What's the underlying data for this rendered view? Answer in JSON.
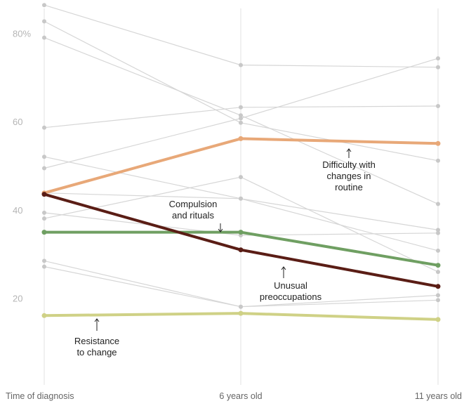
{
  "chart_data": {
    "type": "line",
    "x": [
      "Time of diagnosis",
      "6 years old",
      "11 years old"
    ],
    "y_ticks": [
      "80%",
      "60",
      "40",
      "20"
    ],
    "y_tick_values": [
      80,
      60,
      40,
      20
    ],
    "ylim": [
      0,
      87.5
    ],
    "grid": "vertical lines at each x category",
    "background_series": [
      {
        "values": [
          86.6,
          73.0,
          72.5
        ]
      },
      {
        "values": [
          82.9,
          59.9,
          51.3
        ]
      },
      {
        "values": [
          79.2,
          61.6,
          41.5
        ]
      },
      {
        "values": [
          58.8,
          63.4,
          63.7
        ]
      },
      {
        "values": [
          49.6,
          60.9,
          74.5
        ]
      },
      {
        "values": [
          52.2,
          42.7,
          35.6
        ]
      },
      {
        "values": [
          44.0,
          42.7,
          30.9
        ]
      },
      {
        "values": [
          39.5,
          34.4,
          34.9
        ]
      },
      {
        "values": [
          38.2,
          47.6,
          26.1
        ]
      },
      {
        "values": [
          28.6,
          18.2,
          19.7
        ]
      },
      {
        "values": [
          27.3,
          18.2,
          20.8
        ]
      }
    ],
    "series": [
      {
        "name": "Difficulty with changes in routine",
        "values": [
          44.0,
          56.3,
          55.2
        ],
        "color": "#e8a878"
      },
      {
        "name": "Compulsion and rituals",
        "values": [
          35.1,
          35.1,
          27.6
        ],
        "color": "#6f9f62"
      },
      {
        "name": "Unusual preoccupations",
        "values": [
          43.7,
          31.1,
          22.8
        ],
        "color": "#5a1d15"
      },
      {
        "name": "Resistance to change",
        "values": [
          16.2,
          16.7,
          15.3
        ],
        "color": "#cfd186"
      }
    ],
    "annotations": [
      {
        "series": 0,
        "lines": [
          "Difficulty with",
          "changes in",
          "routine"
        ],
        "arrow": "up"
      },
      {
        "series": 1,
        "lines": [
          "Compulsion",
          "and rituals"
        ],
        "arrow": "down"
      },
      {
        "series": 2,
        "lines": [
          "Unusual",
          "preoccupations"
        ],
        "arrow": "up"
      },
      {
        "series": 3,
        "lines": [
          "Resistance",
          "to change"
        ],
        "arrow": "up"
      }
    ],
    "colors": {
      "background_line": "#d6d6d6",
      "background_dot": "#c8c8c8",
      "gridline": "#e2e2e2"
    }
  }
}
